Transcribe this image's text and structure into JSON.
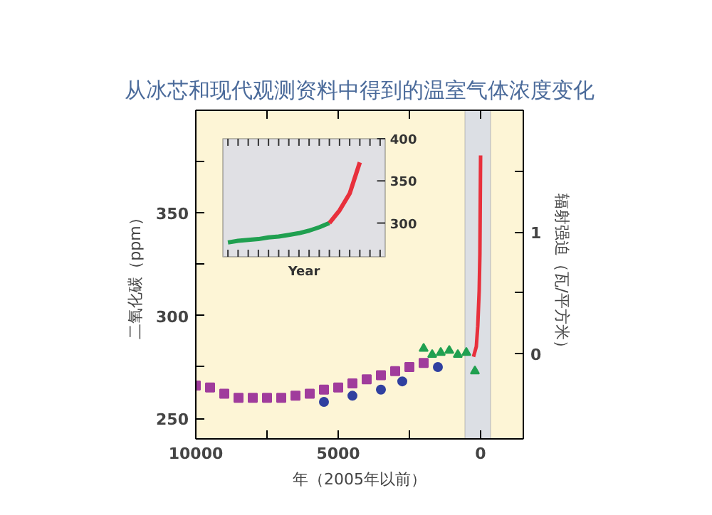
{
  "chart_data": [
    {
      "type": "scatter",
      "title": "从冰芯和现代观测资料中得到的温室气体浓度变化",
      "xlabel": "年（2005年以前）",
      "ylabel": "二氧化碳（ppm）",
      "y2label": "辐射强迫（瓦/平方米）",
      "xlim": [
        10000,
        -1500
      ],
      "xticks": [
        10000,
        {
          "value": 7500,
          "label": null
        },
        5000,
        {
          "value": 2500,
          "label": null
        },
        0
      ],
      "ylim": [
        240,
        400
      ],
      "yticks": [
        250,
        {
          "value": 275,
          "label": null
        },
        300,
        {
          "value": 325,
          "label": null
        },
        350,
        {
          "value": 375,
          "label": null
        }
      ],
      "y2lim": [
        -0.7,
        2.0
      ],
      "y2ticks": [
        0,
        {
          "value": 0.5,
          "label": null
        },
        1,
        {
          "value": 1.5,
          "label": null
        }
      ],
      "grid": false,
      "bands": [
        {
          "axis": "x",
          "from": 550,
          "to": -350,
          "color": "#dcdfe4"
        }
      ],
      "series": [
        {
          "marker": "square",
          "color": "#a03c9c",
          "x": [
            10000,
            9500,
            9000,
            8500,
            8000,
            7500,
            7000,
            6500,
            6000,
            5500,
            5000,
            4500,
            4000,
            3500,
            3000,
            2500,
            2000
          ],
          "values": [
            266,
            265,
            262,
            260,
            260,
            260,
            260,
            261,
            262,
            264,
            265,
            267,
            269,
            271,
            273,
            275,
            277
          ]
        },
        {
          "marker": "circle",
          "color": "#3040a0",
          "x": [
            5500,
            4500,
            3500,
            2750,
            1500
          ],
          "values": [
            258,
            261,
            264,
            268,
            275
          ]
        },
        {
          "marker": "triangle",
          "color": "#20a050",
          "x": [
            2000,
            1700,
            1400,
            1100,
            800,
            500,
            200
          ],
          "values": [
            284,
            281,
            282,
            283,
            281,
            282,
            273
          ]
        },
        {
          "type": "line",
          "color": "#e8303c",
          "x": [
            250,
            150,
            100,
            50,
            25,
            0
          ],
          "values": [
            280,
            285,
            295,
            312,
            330,
            378
          ]
        }
      ]
    },
    {
      "type": "line",
      "xlabel": "Year",
      "categories": [
        null,
        null,
        null,
        null,
        null,
        null,
        null,
        null,
        null,
        null,
        null,
        null,
        null,
        null,
        null,
        null
      ],
      "ylim": [
        260,
        400
      ],
      "yticks": [
        300,
        350,
        400
      ],
      "tick_labels": "y",
      "grid": false,
      "series": [
        {
          "color": "#20a050",
          "values": [
            277,
            279,
            280,
            281,
            283,
            284,
            286,
            288,
            291,
            295,
            300,
            null,
            null,
            null,
            null,
            null
          ]
        },
        {
          "color": "#e8303c",
          "values": [
            null,
            null,
            null,
            null,
            null,
            null,
            null,
            null,
            null,
            null,
            300,
            315,
            335,
            372,
            null,
            null
          ]
        }
      ]
    }
  ]
}
